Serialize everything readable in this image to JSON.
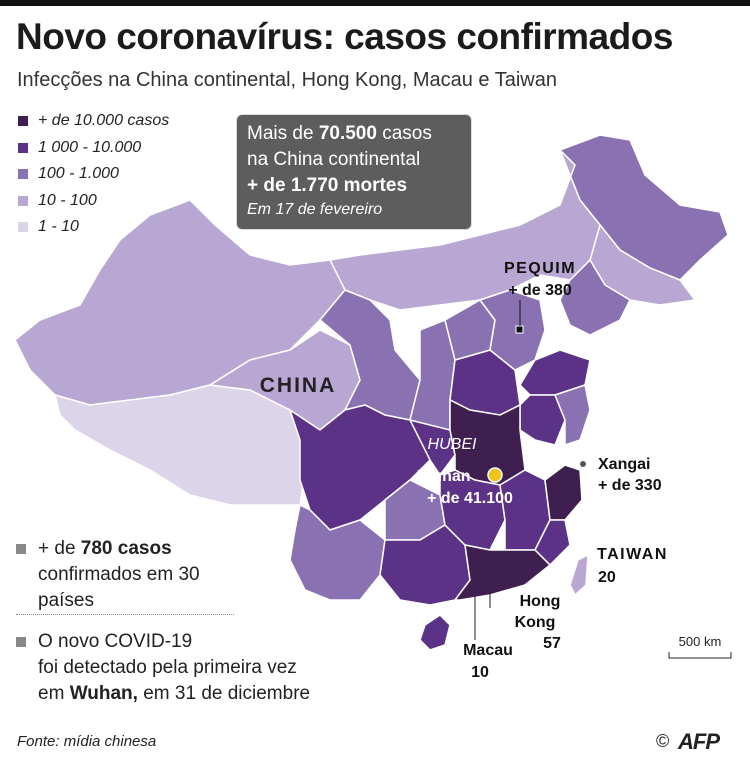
{
  "title": "Novo coronavírus: casos confirmados",
  "subtitle": "Infecções na China continental, Hong Kong, Macau e Taiwan",
  "legend": [
    {
      "label": "+ de 10.000 casos",
      "color": "#3f1f4f"
    },
    {
      "label": "1 000 - 10.000",
      "color": "#5b3285"
    },
    {
      "label": "100 - 1.000",
      "color": "#8a72b2"
    },
    {
      "label": "10 - 100",
      "color": "#b7a7d2"
    },
    {
      "label": "1 - 10",
      "color": "#dcd4e8"
    }
  ],
  "infobox": {
    "line1_pre": "Mais de ",
    "line1_bold": "70.500",
    "line1_post": " casos",
    "line2": "na China continental",
    "line3": "+ de 1.770 mortes",
    "date": "Em 17 de fevereiro"
  },
  "map_labels": {
    "country": "CHINA",
    "beijing_name": "PEQUIM",
    "beijing_count": "+ de 380",
    "hubei": "HUBEI",
    "wuhan_name": "Wuhan",
    "wuhan_count": "+ de 41.100",
    "shanghai_name": "Xangai",
    "shanghai_count": "+ de 330",
    "taiwan_name": "TAIWAN",
    "taiwan_count": "20",
    "hongkong_name1": "Hong",
    "hongkong_name2": "Kong",
    "hongkong_count": "57",
    "macau_name": "Macau",
    "macau_count": "10",
    "scale": "500 km"
  },
  "notes": {
    "note1_pre": "+ de ",
    "note1_bold": "780 casos",
    "note1_post": "confirmados em 30 países",
    "note2_line1": "O novo COVID-19",
    "note2_line2": "foi detectado pela primeira vez",
    "note2_bold": "Wuhan,",
    "note2_pre": "em ",
    "note2_post": " em 31 de diciembre"
  },
  "footer": {
    "source": "Fonte: mídia chinesa",
    "copyright": "©",
    "logo": "AFP"
  }
}
